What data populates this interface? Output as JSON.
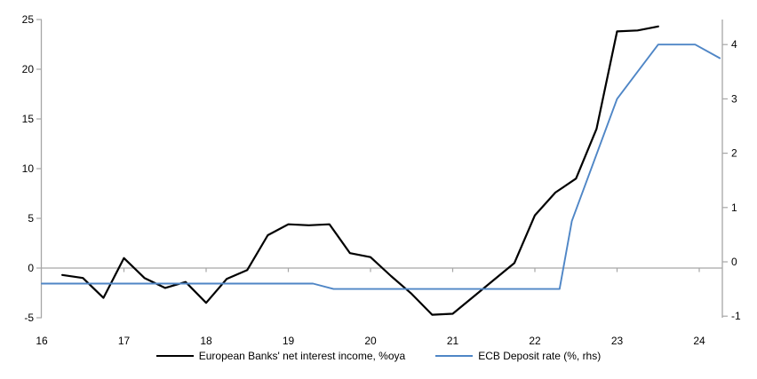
{
  "chart_data": {
    "type": "line",
    "title": "",
    "x_axis": {
      "ticks": [
        "16",
        "17",
        "18",
        "19",
        "20",
        "21",
        "22",
        "23",
        "24"
      ],
      "tick_values": [
        16,
        17,
        18,
        19,
        20,
        21,
        22,
        23,
        24
      ],
      "range": [
        16,
        24.28
      ]
    },
    "left_axis": {
      "label": "",
      "ticks": [
        "25",
        "20",
        "15",
        "10",
        "5",
        "0",
        "-5"
      ],
      "tick_values": [
        25,
        20,
        15,
        10,
        5,
        0,
        -5
      ],
      "range": [
        -5,
        25
      ]
    },
    "right_axis": {
      "label": "",
      "ticks": [
        "4",
        "3",
        "2",
        "1",
        "0",
        "-1"
      ],
      "tick_values": [
        4,
        3,
        2,
        1,
        0,
        -1
      ],
      "range": [
        -1.05,
        4.47
      ]
    },
    "grid": "zero-line-only",
    "legend_position": "bottom-center",
    "series": [
      {
        "name": "European Banks' net interest income, %oya",
        "axis": "left",
        "color": "#000000",
        "stroke_width": 2.2,
        "x": [
          16.25,
          16.5,
          16.75,
          17.0,
          17.25,
          17.5,
          17.75,
          18.0,
          18.25,
          18.5,
          18.75,
          19.0,
          19.25,
          19.5,
          19.75,
          20.0,
          20.25,
          20.5,
          20.75,
          21.0,
          21.25,
          21.5,
          21.75,
          22.0,
          22.25,
          22.5,
          22.75,
          23.0,
          23.25,
          23.5
        ],
        "values": [
          -0.7,
          -1.0,
          -3.0,
          1.0,
          -1.0,
          -2.0,
          -1.4,
          -3.5,
          -1.1,
          -0.2,
          3.3,
          4.4,
          4.3,
          4.4,
          1.5,
          1.1,
          -0.8,
          -2.6,
          -4.7,
          -4.6,
          -2.9,
          -1.2,
          0.5,
          5.3,
          7.6,
          9.0,
          14.0,
          23.8,
          23.9,
          24.3
        ]
      },
      {
        "name": "ECB Deposit rate (%, rhs)",
        "axis": "right",
        "color": "#4f86c6",
        "stroke_width": 1.9,
        "x": [
          16.0,
          19.3,
          19.55,
          22.3,
          22.45,
          23.0,
          23.25,
          23.5,
          23.95,
          24.25
        ],
        "values": [
          -0.4,
          -0.4,
          -0.5,
          -0.5,
          0.75,
          3.0,
          3.5,
          4.0,
          4.0,
          3.75
        ]
      }
    ],
    "colors": {
      "axis_line": "#a6a6a6",
      "zero_line": "#a6a6a6",
      "tick_text": "#000000"
    }
  }
}
